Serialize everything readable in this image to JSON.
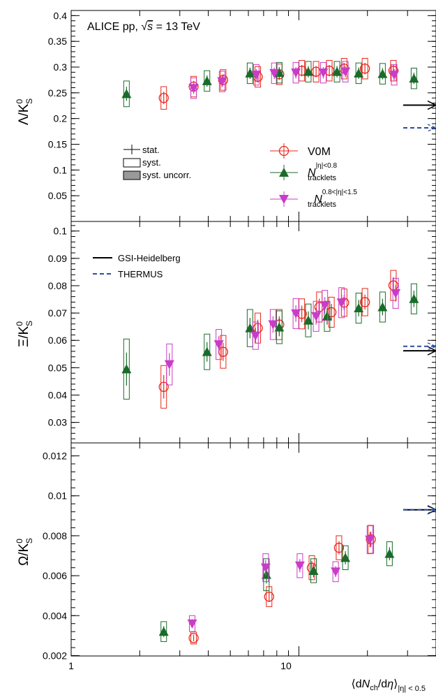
{
  "header": {
    "experiment": "ALICE pp, ",
    "sqrt": "√",
    "s": "s",
    "energy": " = 13 TeV"
  },
  "legend": {
    "stat": "stat.",
    "syst": "syst.",
    "syst_uncorr": "syst. uncorr.",
    "v0m": "V0M",
    "n_main": "N",
    "trk_sub": "tracklets",
    "trk1_sup": "|η|<0.8",
    "trk2_sup": "0.8<|η|<1.5",
    "gsi": "GSI-Heidelberg",
    "thermus": "THERMUS"
  },
  "colors": {
    "v0m": "#e8261a",
    "trk1": "#1a6b2a",
    "trk2": "#c93cc8",
    "gsi": "#000000",
    "thermus": "#2a4ca8",
    "syst_uncorr_fill": "#999999"
  },
  "xaxis": {
    "label_pre": "⟨d",
    "label_N": "N",
    "label_ch": "ch",
    "label_mid": "/d",
    "label_eta": "η",
    "label_post": "⟩",
    "label_sub": "|η| < 0.5",
    "tick_1": "1",
    "tick_10": "10"
  },
  "chart_data": [
    {
      "type": "scatter",
      "ylabel": "Λ/K0S",
      "x_scale": "log",
      "xlim": [
        1,
        40
      ],
      "ylim": [
        0,
        0.41
      ],
      "yticks": [
        "0.05",
        "0.1",
        "0.15",
        "0.2",
        "0.25",
        "0.3",
        "0.35",
        "0.4"
      ],
      "series": [
        {
          "name": "V0M",
          "marker": "circle-open",
          "color": "#e8261a",
          "points": [
            {
              "x": 2.55,
              "y": 0.24,
              "ys": 0.022
            },
            {
              "x": 3.45,
              "y": 0.262,
              "ys": 0.02
            },
            {
              "x": 4.65,
              "y": 0.275,
              "ys": 0.02
            },
            {
              "x": 6.6,
              "y": 0.281,
              "ys": 0.02
            },
            {
              "x": 8.2,
              "y": 0.286,
              "ys": 0.02
            },
            {
              "x": 10.3,
              "y": 0.293,
              "ys": 0.02
            },
            {
              "x": 11.9,
              "y": 0.291,
              "ys": 0.02
            },
            {
              "x": 13.6,
              "y": 0.293,
              "ys": 0.02
            },
            {
              "x": 15.8,
              "y": 0.297,
              "ys": 0.02
            },
            {
              "x": 19.5,
              "y": 0.297,
              "ys": 0.02
            },
            {
              "x": 26.0,
              "y": 0.293,
              "ys": 0.02
            }
          ]
        },
        {
          "name": "Ntracklets |η|<0.8",
          "marker": "triangle-up",
          "color": "#1a6b2a",
          "points": [
            {
              "x": 1.75,
              "y": 0.248,
              "ys": 0.025
            },
            {
              "x": 3.95,
              "y": 0.273,
              "ys": 0.02
            },
            {
              "x": 6.1,
              "y": 0.288,
              "ys": 0.02
            },
            {
              "x": 8.2,
              "y": 0.289,
              "ys": 0.02
            },
            {
              "x": 11.0,
              "y": 0.291,
              "ys": 0.02
            },
            {
              "x": 14.7,
              "y": 0.291,
              "ys": 0.02
            },
            {
              "x": 18.3,
              "y": 0.288,
              "ys": 0.02
            },
            {
              "x": 23.3,
              "y": 0.287,
              "ys": 0.02
            },
            {
              "x": 32.0,
              "y": 0.278,
              "ys": 0.02
            }
          ]
        },
        {
          "name": "Ntracklets 0.8<|η|<1.5",
          "marker": "triangle-down",
          "color": "#c93cc8",
          "points": [
            {
              "x": 3.45,
              "y": 0.259,
              "ys": 0.02
            },
            {
              "x": 4.6,
              "y": 0.272,
              "ys": 0.02
            },
            {
              "x": 6.5,
              "y": 0.285,
              "ys": 0.02
            },
            {
              "x": 7.8,
              "y": 0.288,
              "ys": 0.02
            },
            {
              "x": 9.7,
              "y": 0.289,
              "ys": 0.02
            },
            {
              "x": 12.8,
              "y": 0.289,
              "ys": 0.02
            },
            {
              "x": 16.0,
              "y": 0.291,
              "ys": 0.02
            },
            {
              "x": 26.2,
              "y": 0.285,
              "ys": 0.02
            }
          ]
        }
      ],
      "models": [
        {
          "name": "GSI-Heidelberg",
          "y": 0.226
        },
        {
          "name": "THERMUS",
          "y": 0.182
        }
      ]
    },
    {
      "type": "scatter",
      "ylabel": "Ξ/K0S",
      "x_scale": "log",
      "xlim": [
        1,
        40
      ],
      "ylim": [
        0.0225,
        0.1035
      ],
      "yticks": [
        "0.03",
        "0.04",
        "0.05",
        "0.06",
        "0.07",
        "0.08",
        "0.09",
        "0.1"
      ],
      "series": [
        {
          "name": "V0M",
          "marker": "circle-open",
          "color": "#e8261a",
          "points": [
            {
              "x": 2.55,
              "y": 0.043,
              "ys": 0.0078
            },
            {
              "x": 4.65,
              "y": 0.0558,
              "ys": 0.006
            },
            {
              "x": 6.6,
              "y": 0.0645,
              "ys": 0.0055
            },
            {
              "x": 8.2,
              "y": 0.0658,
              "ys": 0.0055
            },
            {
              "x": 10.3,
              "y": 0.0697,
              "ys": 0.0055
            },
            {
              "x": 12.3,
              "y": 0.0722,
              "ys": 0.0055
            },
            {
              "x": 13.9,
              "y": 0.0703,
              "ys": 0.0055
            },
            {
              "x": 15.8,
              "y": 0.0738,
              "ys": 0.005
            },
            {
              "x": 19.5,
              "y": 0.074,
              "ys": 0.005
            },
            {
              "x": 26.0,
              "y": 0.0801,
              "ys": 0.0055
            }
          ]
        },
        {
          "name": "Ntracklets |η|<0.8",
          "marker": "triangle-up",
          "color": "#1a6b2a",
          "points": [
            {
              "x": 1.75,
              "y": 0.0495,
              "ys": 0.011
            },
            {
              "x": 3.95,
              "y": 0.0558,
              "ys": 0.0065
            },
            {
              "x": 6.1,
              "y": 0.0645,
              "ys": 0.0068
            },
            {
              "x": 8.2,
              "y": 0.0648,
              "ys": 0.006
            },
            {
              "x": 11.0,
              "y": 0.0673,
              "ys": 0.006
            },
            {
              "x": 13.3,
              "y": 0.0688,
              "ys": 0.0055
            },
            {
              "x": 18.3,
              "y": 0.0718,
              "ys": 0.0055
            },
            {
              "x": 23.3,
              "y": 0.0722,
              "ys": 0.0055
            },
            {
              "x": 32.0,
              "y": 0.0752,
              "ys": 0.0055
            }
          ]
        },
        {
          "name": "Ntracklets 0.8<|η|<1.5",
          "marker": "triangle-down",
          "color": "#c93cc8",
          "points": [
            {
              "x": 2.7,
              "y": 0.0512,
              "ys": 0.0075
            },
            {
              "x": 4.45,
              "y": 0.0585,
              "ys": 0.0055
            },
            {
              "x": 6.45,
              "y": 0.0617,
              "ys": 0.005
            },
            {
              "x": 7.7,
              "y": 0.0658,
              "ys": 0.0055
            },
            {
              "x": 9.7,
              "y": 0.0698,
              "ys": 0.0055
            },
            {
              "x": 11.9,
              "y": 0.0688,
              "ys": 0.0055
            },
            {
              "x": 13.0,
              "y": 0.0728,
              "ys": 0.0055
            },
            {
              "x": 15.4,
              "y": 0.0738,
              "ys": 0.0055
            },
            {
              "x": 26.6,
              "y": 0.0772,
              "ys": 0.0055
            }
          ]
        }
      ],
      "models": [
        {
          "name": "GSI-Heidelberg",
          "y": 0.0562
        },
        {
          "name": "THERMUS",
          "y": 0.0573
        }
      ]
    },
    {
      "type": "scatter",
      "ylabel": "Ω/K0S",
      "x_scale": "log",
      "xlim": [
        1,
        40
      ],
      "ylim": [
        0.00198,
        0.01265
      ],
      "yticks": [
        "0.002",
        "0.004",
        "0.006",
        "0.008",
        "0.01",
        "0.012"
      ],
      "series": [
        {
          "name": "V0M",
          "marker": "circle-open",
          "color": "#e8261a",
          "points": [
            {
              "x": 3.45,
              "y": 0.00288,
              "ys": 0.0003
            },
            {
              "x": 7.4,
              "y": 0.00495,
              "ys": 0.0005
            },
            {
              "x": 11.4,
              "y": 0.0064,
              "ys": 0.0006
            },
            {
              "x": 15.0,
              "y": 0.0074,
              "ys": 0.0006
            },
            {
              "x": 20.7,
              "y": 0.00782,
              "ys": 0.0007
            }
          ]
        },
        {
          "name": "Ntracklets |η|<0.8",
          "marker": "triangle-up",
          "color": "#1a6b2a",
          "points": [
            {
              "x": 2.55,
              "y": 0.0032,
              "ys": 0.0005
            },
            {
              "x": 7.2,
              "y": 0.00605,
              "ys": 0.0008
            },
            {
              "x": 11.6,
              "y": 0.00625,
              "ys": 0.0006
            },
            {
              "x": 16.0,
              "y": 0.0069,
              "ys": 0.0006
            },
            {
              "x": 25.0,
              "y": 0.0071,
              "ys": 0.0006
            }
          ]
        },
        {
          "name": "Ntracklets 0.8<|η|<1.5",
          "marker": "triangle-down",
          "color": "#c93cc8",
          "points": [
            {
              "x": 3.4,
              "y": 0.0036,
              "ys": 0.0004
            },
            {
              "x": 7.15,
              "y": 0.0064,
              "ys": 0.0007
            },
            {
              "x": 10.1,
              "y": 0.0065,
              "ys": 0.0006
            },
            {
              "x": 14.5,
              "y": 0.0062,
              "ys": 0.0005
            },
            {
              "x": 20.5,
              "y": 0.0078,
              "ys": 0.0007
            }
          ]
        }
      ],
      "models": [
        {
          "name": "GSI-Heidelberg",
          "y": 0.0093
        },
        {
          "name": "THERMUS",
          "y": 0.0093
        }
      ]
    }
  ]
}
